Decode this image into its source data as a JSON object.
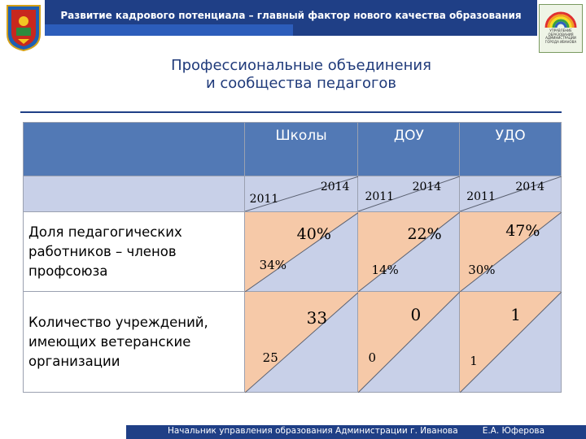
{
  "header": {
    "title": "Развитие кадрового потенциала – главный фактор нового качества образования",
    "logo_text": "УПРАВЛЕНИЕ ОБРАЗОВАНИЯ АДМИНИСТРАЦИИ ГОРОДА ИВАНОВА"
  },
  "heading": {
    "line1": "Профессиональные объединения",
    "line2": "и сообщества педагогов"
  },
  "table": {
    "columns": [
      "Школы",
      "ДОУ",
      "УДО"
    ],
    "year_old": "2011",
    "year_new": "2014",
    "rows": [
      {
        "label": "Доля педагогических работников – членов профсоюза",
        "cells": [
          {
            "old": "34%",
            "new": "40%"
          },
          {
            "old": "14%",
            "new": "22%"
          },
          {
            "old": "30%",
            "new": "47%"
          }
        ]
      },
      {
        "label": "Количество учреждений, имеющих ветеранские организации",
        "cells": [
          {
            "old": "25",
            "new": "33"
          },
          {
            "old": "0",
            "new": "0"
          },
          {
            "old": "1",
            "new": "1"
          }
        ]
      }
    ]
  },
  "footer": {
    "left": "Начальник управления образования Администрации  г. Иванова",
    "right": "Е.А. Юферова"
  },
  "colors": {
    "header_bar": "#1f3f86",
    "column_header": "#5279b5",
    "cell_blue": "#c8d0e8",
    "cell_peach": "#f6c9a8"
  }
}
